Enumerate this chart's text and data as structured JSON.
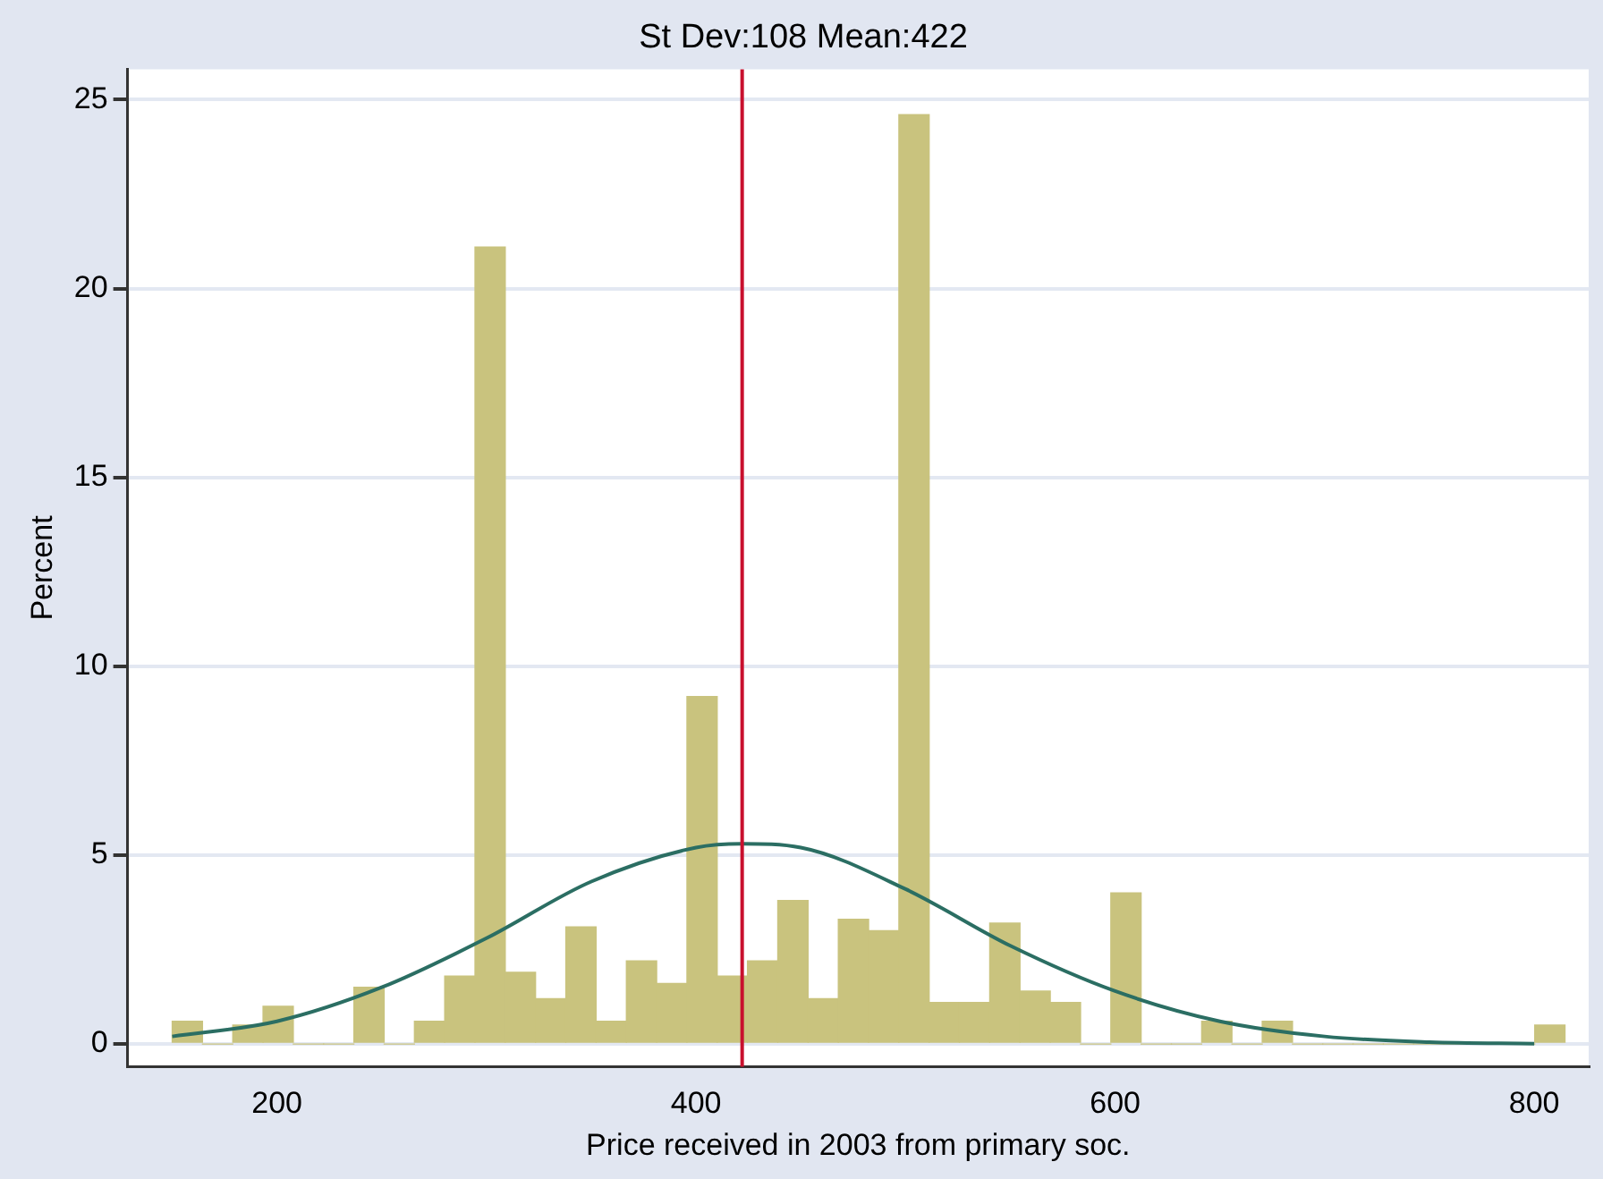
{
  "chart_data": {
    "type": "histogram",
    "title": "St Dev:108 Mean:422",
    "xlabel": "Price received in 2003 from primary soc.",
    "ylabel": "Percent",
    "bins": [
      150,
      164.45,
      178.9,
      193.35,
      207.8,
      222.25,
      236.7,
      251.15,
      265.6,
      280.05,
      294.5,
      308.95,
      323.4,
      337.85,
      352.3,
      366.75,
      381.2,
      395.65,
      410.1,
      424.55,
      439,
      453.45,
      467.9,
      482.35,
      496.8,
      511.25,
      525.7,
      540.15,
      554.6,
      569.05,
      583.5,
      597.95,
      612.4,
      626.85,
      641.3,
      655.75,
      670.2,
      684.65,
      699.1,
      713.55,
      728,
      742.45,
      756.9,
      771.35,
      785.8,
      800.25,
      814.7
    ],
    "values": [
      0.6,
      0,
      0.5,
      1.0,
      0,
      0,
      1.5,
      0,
      0.6,
      1.8,
      21.1,
      1.9,
      1.2,
      3.1,
      0.6,
      2.2,
      1.6,
      9.2,
      1.8,
      2.2,
      3.8,
      1.2,
      3.3,
      3.0,
      24.6,
      1.1,
      1.1,
      3.2,
      1.4,
      1.1,
      0,
      4.0,
      0,
      0,
      0.6,
      0,
      0.6,
      0,
      0,
      0,
      0,
      0,
      0,
      0,
      0,
      0.5
    ],
    "color": "#c9c37e",
    "series": [
      {
        "type": "line",
        "color": "#2b6e63",
        "x": [
          150,
          200,
          250,
          300,
          350,
          400,
          422,
          450,
          500,
          550,
          600,
          650,
          700,
          750,
          800
        ],
        "values": [
          0.2,
          0.6,
          1.5,
          2.8,
          4.3,
          5.2,
          5.3,
          5.2,
          4.1,
          2.6,
          1.4,
          0.6,
          0.2,
          0.05,
          0.01
        ]
      }
    ],
    "ref_lines": [
      {
        "axis": "x",
        "value": 422,
        "color": "#c8102e"
      }
    ],
    "xlim": [
      128.7,
      826
    ],
    "ylim": [
      -0.6,
      25.8
    ],
    "xticks": [
      200,
      400,
      600,
      800
    ],
    "yticks": [
      0,
      5,
      10,
      15,
      20,
      25
    ],
    "grid": "y",
    "legend": false
  }
}
